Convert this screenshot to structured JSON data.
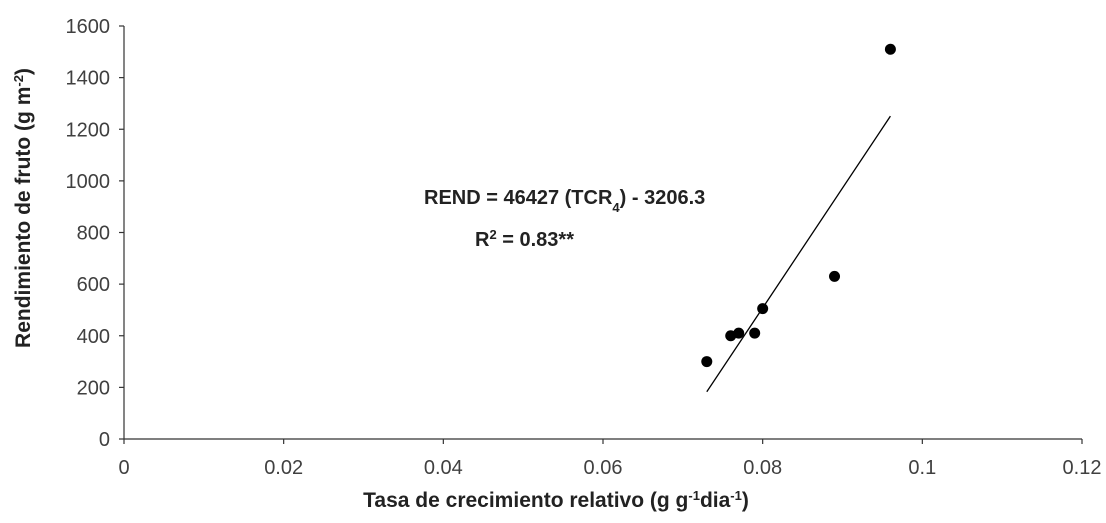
{
  "chart_data": {
    "type": "scatter",
    "x": [
      0.073,
      0.076,
      0.077,
      0.079,
      0.08,
      0.089,
      0.096
    ],
    "y": [
      300,
      400,
      410,
      410,
      505,
      630,
      1510
    ],
    "xlim": [
      0,
      0.12
    ],
    "ylim": [
      0,
      1600
    ],
    "x_ticks": [
      "0",
      "0.02",
      "0.04",
      "0.06",
      "0.08",
      "0.1",
      "0.12"
    ],
    "y_ticks": [
      "0",
      "200",
      "400",
      "600",
      "800",
      "1000",
      "1200",
      "1400",
      "1600"
    ],
    "xlabel": {
      "main": "Tasa de crecimiento relativo (g g",
      "sup1": "-1",
      "mid": "dia",
      "sup2": "-1",
      "end": ")"
    },
    "ylabel": {
      "main": "Rendimiento de fruto (g m",
      "sup": "-2",
      "end": ")"
    },
    "trendline": {
      "slope": 46427,
      "intercept": -3206.3,
      "x_range": [
        0.073,
        0.096
      ]
    },
    "annotations": {
      "equation": {
        "pre": "REND = 46427 (TCR",
        "sub": "4",
        "post": ") - 3206.3"
      },
      "r2": {
        "pre": "R",
        "sup": "2",
        "post": " = 0.83**"
      }
    },
    "grid": false,
    "legend": "none",
    "colors": {
      "marker": "#000000",
      "axis": "#333333",
      "text": "#222222"
    }
  }
}
